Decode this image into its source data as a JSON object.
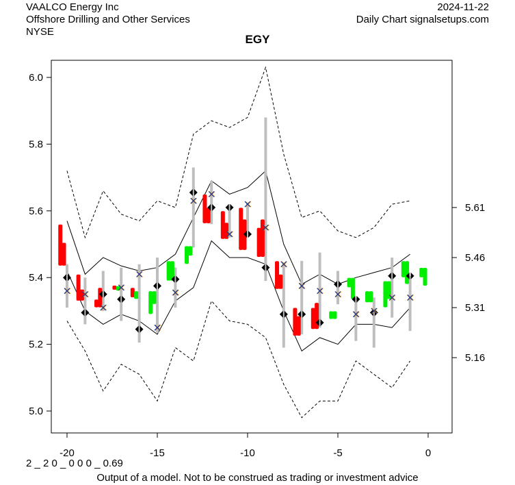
{
  "header": {
    "company": "VAALCO Energy Inc",
    "industry": "Offshore Drilling and Other Services",
    "exchange": "NYSE",
    "date": "2024-11-22",
    "source": "Daily Chart signalsetups.com"
  },
  "footer": {
    "code": "2 _ 2 0 _ 0 0 0 _ 0.69",
    "disclaimer": "Output of a model. Not to be construed as trading or investment advice"
  },
  "colors": {
    "up": "#00ee00",
    "down": "#ff0000",
    "range": "#bebebe",
    "x_marker": "#1f3a93",
    "x_shadow": "#ff9900"
  },
  "chart_data": {
    "type": "line",
    "title": "EGY",
    "xlim": [
      -20.8,
      1.3
    ],
    "ylim": [
      4.95,
      6.05
    ],
    "x_ticks": [
      -20,
      -15,
      -10,
      -5,
      0
    ],
    "x_tick_labels": [
      "-20",
      "-15",
      "-10",
      "-5",
      "0"
    ],
    "y_ticks": [
      5.0,
      5.2,
      5.4,
      5.6,
      5.8,
      6.0
    ],
    "y_tick_labels": [
      "5.0",
      "5.2",
      "5.4",
      "5.6",
      "5.8",
      "6.0"
    ],
    "y2_ticks": [
      5.61,
      5.46,
      5.31,
      5.16
    ],
    "y2_tick_labels": [
      "5.61",
      "5.46",
      "5.31",
      "5.16"
    ],
    "x": [
      -20,
      -19,
      -18,
      -17,
      -16,
      -15,
      -14,
      -13,
      -12,
      -11,
      -10,
      -9,
      -8,
      -7,
      -6,
      -5,
      -4,
      -3,
      -2,
      -1
    ],
    "upper_dashed": [
      5.72,
      5.52,
      5.66,
      5.59,
      5.57,
      5.63,
      5.61,
      5.83,
      5.87,
      5.85,
      5.88,
      6.03,
      5.77,
      5.58,
      5.6,
      5.54,
      5.52,
      5.55,
      5.62,
      5.63
    ],
    "upper_solid": [
      5.57,
      5.41,
      5.46,
      5.435,
      5.42,
      5.43,
      5.47,
      5.58,
      5.69,
      5.65,
      5.67,
      5.72,
      5.5,
      5.38,
      5.41,
      5.38,
      5.4,
      5.415,
      5.43,
      5.47
    ],
    "lower_solid": [
      5.42,
      5.3,
      5.26,
      5.29,
      5.27,
      5.23,
      5.33,
      5.37,
      5.51,
      5.46,
      5.46,
      5.44,
      5.3,
      5.18,
      5.22,
      5.2,
      5.26,
      5.26,
      5.25,
      5.31
    ],
    "lower_dashed": [
      5.27,
      5.18,
      5.06,
      5.14,
      5.11,
      5.03,
      5.19,
      5.15,
      5.33,
      5.27,
      5.26,
      5.22,
      5.08,
      4.98,
      5.03,
      5.03,
      5.15,
      5.11,
      5.07,
      5.15
    ],
    "range_low": [
      5.31,
      5.26,
      5.3,
      5.27,
      5.205,
      5.235,
      5.31,
      5.49,
      5.56,
      5.52,
      5.52,
      5.39,
      5.19,
      5.23,
      5.25,
      5.32,
      5.21,
      5.19,
      5.28,
      5.24
    ],
    "range_high": [
      5.44,
      5.4,
      5.42,
      5.43,
      5.44,
      5.46,
      5.43,
      5.73,
      5.69,
      5.62,
      5.625,
      5.88,
      5.445,
      5.45,
      5.475,
      5.42,
      5.34,
      5.34,
      5.46,
      5.405
    ],
    "x_marker": [
      5.36,
      5.35,
      5.31,
      5.37,
      5.41,
      5.25,
      5.355,
      5.63,
      5.65,
      5.53,
      5.62,
      5.55,
      5.44,
      5.375,
      5.36,
      5.35,
      5.29,
      5.3,
      5.34,
      5.34
    ],
    "diamond": [
      5.4,
      5.295,
      5.35,
      5.335,
      5.245,
      5.375,
      5.395,
      5.655,
      5.61,
      5.61,
      5.53,
      5.43,
      5.29,
      5.29,
      5.265,
      5.38,
      5.335,
      5.295,
      5.405,
      5.405
    ],
    "candles": [
      {
        "x": -20,
        "dir": "down",
        "bars": [
          [
            5.44,
            5.555
          ],
          [
            5.44,
            5.5
          ]
        ]
      },
      {
        "x": -19,
        "dir": "down",
        "bars": [
          [
            5.335,
            5.405
          ],
          [
            5.335,
            5.36
          ]
        ]
      },
      {
        "x": -18,
        "dir": "down",
        "bars": [
          [
            5.315,
            5.33
          ],
          [
            5.315,
            5.365
          ]
        ]
      },
      {
        "x": -17,
        "dir": "mixed",
        "bars": [
          [
            5.368,
            5.372
          ],
          [
            5.365,
            5.37
          ]
        ]
      },
      {
        "x": -16,
        "dir": "mixed",
        "bars": [
          [
            5.345,
            5.365
          ],
          [
            5.34,
            5.355
          ]
        ]
      },
      {
        "x": -15,
        "dir": "up",
        "bars": [
          [
            5.295,
            5.355
          ],
          [
            5.325,
            5.355
          ]
        ]
      },
      {
        "x": -14,
        "dir": "up",
        "bars": [
          [
            5.395,
            5.445
          ],
          [
            5.395,
            5.445
          ]
        ]
      },
      {
        "x": -13,
        "dir": "up",
        "bars": [
          [
            5.445,
            5.49
          ],
          [
            5.47,
            5.49
          ]
        ]
      },
      {
        "x": -12,
        "dir": "down",
        "bars": [
          [
            5.567,
            5.645
          ],
          [
            5.567,
            5.605
          ]
        ]
      },
      {
        "x": -11,
        "dir": "down",
        "bars": [
          [
            5.52,
            5.595
          ],
          [
            5.52,
            5.56
          ]
        ]
      },
      {
        "x": -10,
        "dir": "down",
        "bars": [
          [
            5.487,
            5.605
          ],
          [
            5.487,
            5.57
          ]
        ]
      },
      {
        "x": -9,
        "dir": "down",
        "bars": [
          [
            5.466,
            5.545
          ],
          [
            5.466,
            5.57
          ]
        ]
      },
      {
        "x": -8,
        "dir": "down",
        "bars": [
          [
            5.37,
            5.445
          ],
          [
            5.37,
            5.405
          ]
        ]
      },
      {
        "x": -7,
        "dir": "down",
        "bars": [
          [
            5.23,
            5.305
          ],
          [
            5.23,
            5.28
          ]
        ]
      },
      {
        "x": -6,
        "dir": "down",
        "bars": [
          [
            5.25,
            5.305
          ],
          [
            5.25,
            5.32
          ]
        ]
      },
      {
        "x": -5,
        "dir": "up",
        "bars": [
          [
            5.28,
            5.295
          ],
          [
            5.28,
            5.295
          ]
        ]
      },
      {
        "x": -4,
        "dir": "up",
        "bars": [
          [
            5.375,
            5.395
          ],
          [
            5.34,
            5.395
          ]
        ]
      },
      {
        "x": -3,
        "dir": "up",
        "bars": [
          [
            5.33,
            5.355
          ],
          [
            5.33,
            5.355
          ]
        ]
      },
      {
        "x": -2,
        "dir": "up",
        "bars": [
          [
            5.315,
            5.385
          ],
          [
            5.34,
            5.385
          ]
        ]
      },
      {
        "x": -1,
        "dir": "up",
        "bars": [
          [
            5.405,
            5.445
          ],
          [
            5.385,
            5.445
          ]
        ]
      },
      {
        "x": 0,
        "dir": "up",
        "bars": [
          [
            5.405,
            5.425
          ],
          [
            5.38,
            5.425
          ]
        ]
      }
    ]
  }
}
